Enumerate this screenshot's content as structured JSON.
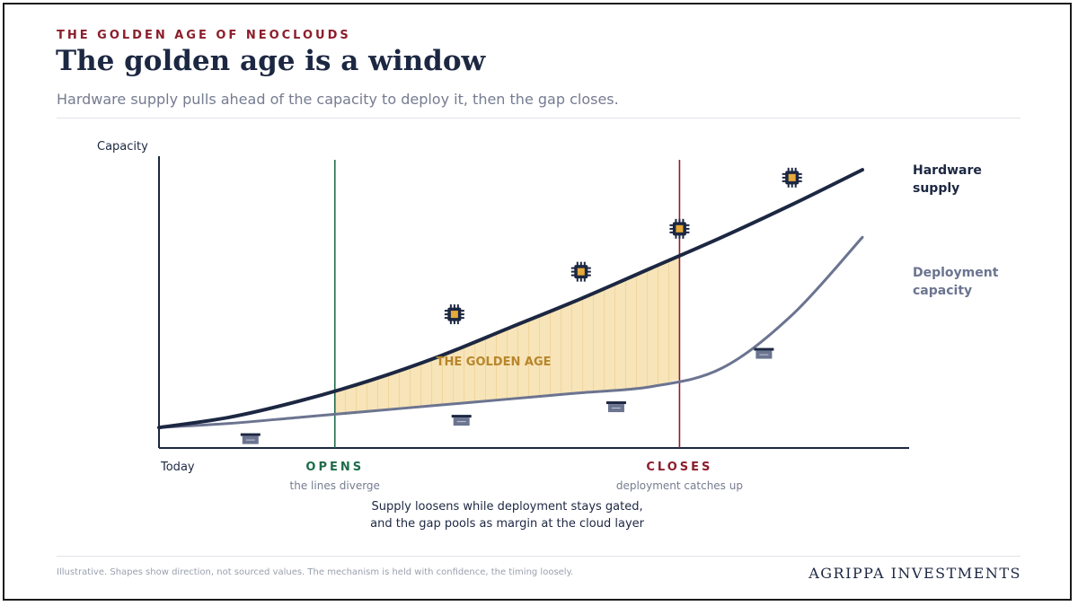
{
  "header": {
    "kicker": "THE GOLDEN AGE OF NEOCLOUDS",
    "title": "The golden age is a window",
    "subtitle": "Hardware supply pulls ahead of the capacity to deploy it, then the gap closes."
  },
  "chart_data": {
    "type": "area",
    "ylabel": "Capacity",
    "x_start_label": "Today",
    "x": [
      0,
      1,
      2,
      3,
      4,
      5,
      6,
      7,
      8,
      9,
      10
    ],
    "series": [
      {
        "name": "Hardware supply",
        "name_lines": [
          "Hardware",
          "supply"
        ],
        "color": "#1c2742",
        "values": [
          1.0,
          1.5,
          2.3,
          3.3,
          4.5,
          5.9,
          7.3,
          8.8,
          10.3,
          11.9,
          13.6
        ]
      },
      {
        "name": "Deployment capacity",
        "name_lines": [
          "Deployment",
          "capacity"
        ],
        "color": "#6b7490",
        "values": [
          1.0,
          1.2,
          1.5,
          1.8,
          2.1,
          2.4,
          2.7,
          3.0,
          3.9,
          6.5,
          10.3
        ]
      }
    ],
    "window": {
      "start_x": 2.5,
      "end_x": 7.4,
      "label": "THE GOLDEN AGE",
      "opens": {
        "label": "OPENS",
        "caption": "the lines diverge",
        "color": "#1f6b4a"
      },
      "closes": {
        "label": "CLOSES",
        "caption": "deployment catches up",
        "color": "#8b1e2b"
      }
    },
    "annotation": [
      "Supply loosens while deployment stays gated,",
      "and the gap pools as margin at the cloud layer"
    ],
    "icons": {
      "chip": [
        4.2,
        6.0,
        7.4,
        9.0
      ],
      "server": [
        1.3,
        4.3,
        6.5,
        8.6
      ]
    },
    "xlim": [
      0,
      10
    ],
    "ylim": [
      0,
      14
    ],
    "grid": false,
    "legend": "right, at line ends",
    "fill_color": "#f5dfae"
  },
  "footer": {
    "note": "Illustrative. Shapes show direction, not sourced values. The mechanism is held with confidence, the timing loosely.",
    "brand": "AGRIPPA INVESTMENTS"
  }
}
